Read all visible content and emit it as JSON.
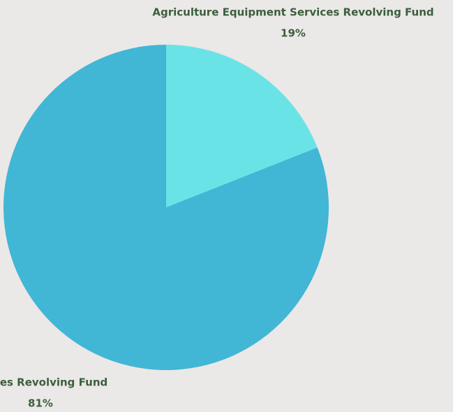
{
  "chart_data": {
    "type": "pie",
    "title": "",
    "slices": [
      {
        "label": "Agriculture Equipment Services Revolving Fund",
        "percent_label": "19%",
        "value": 19,
        "color": "#6ae3e6"
      },
      {
        "label": "Games Revolving Fund",
        "percent_label": "81%",
        "value": 81,
        "color": "#42b6d5"
      }
    ],
    "start_angle_deg": 0,
    "direction": "clockwise",
    "label_color": "#3b5f3c",
    "background_color": "#ebe8e8"
  }
}
